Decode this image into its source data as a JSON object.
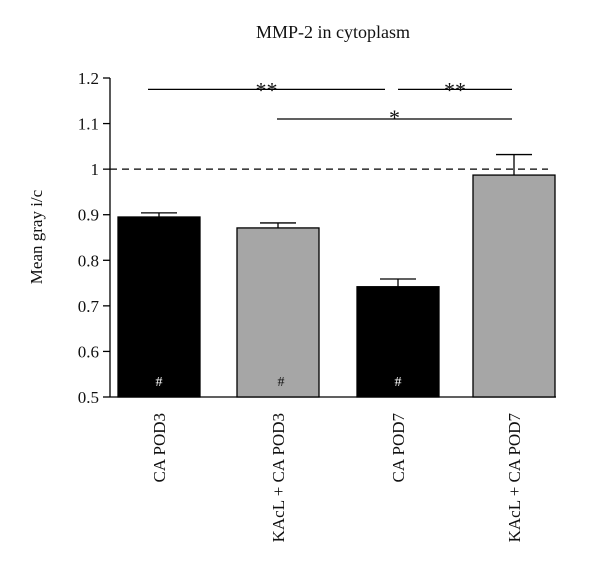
{
  "chart_data": {
    "type": "bar",
    "title": "MMP-2 in cytoplasm",
    "xlabel": "",
    "ylabel": "Mean gray i/c",
    "ylim": [
      0.5,
      1.2
    ],
    "yticks": [
      "0.5",
      "0.6",
      "0.7",
      "0.8",
      "0.9",
      "1",
      "1.1",
      "1.2"
    ],
    "categories": [
      "CA POD3",
      "KAcL + CA POD3",
      "CA POD7",
      "KAcL + CA POD7"
    ],
    "values": [
      0.895,
      0.871,
      0.742,
      0.987
    ],
    "errors": [
      0.009,
      0.011,
      0.017,
      0.045
    ],
    "bar_colors": [
      "#000000",
      "#a6a6a6",
      "#000000",
      "#a6a6a6"
    ],
    "bar_marks": [
      "#",
      "#",
      "#",
      ""
    ],
    "reference_line": {
      "value": 1.0,
      "style": "dashed"
    },
    "significance": [
      {
        "from": 0,
        "to": 2,
        "level": 1.175,
        "label": "**"
      },
      {
        "from": 2,
        "to": 3,
        "level": 1.175,
        "label": "**"
      },
      {
        "from": 1,
        "to": 3,
        "level": 1.11,
        "label": "*"
      }
    ]
  }
}
